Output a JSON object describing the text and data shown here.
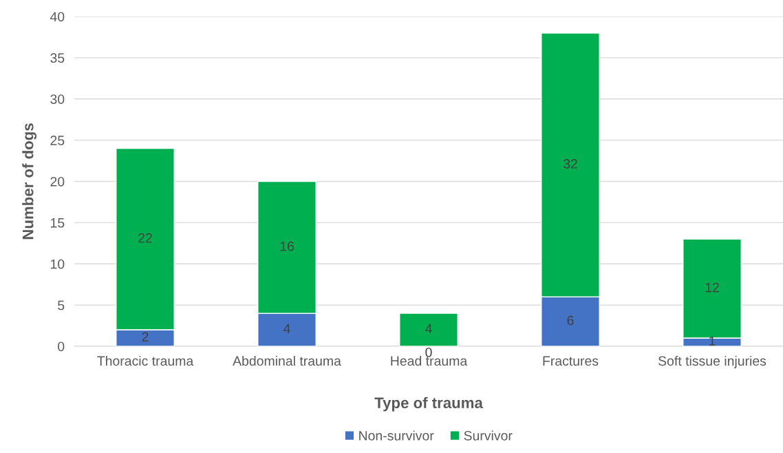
{
  "chart_data": {
    "type": "bar",
    "stacked": true,
    "xlabel": "Type of trauma",
    "ylabel": "Number of dogs",
    "categories": [
      "Thoracic trauma",
      "Abdominal trauma",
      "Head trauma",
      "Fractures",
      "Soft tissue injuries"
    ],
    "series": [
      {
        "name": "Non-survivor",
        "color": "#4472c4",
        "values": [
          2,
          4,
          0,
          6,
          1
        ]
      },
      {
        "name": "Survivor",
        "color": "#00b050",
        "values": [
          22,
          16,
          4,
          32,
          12
        ]
      }
    ],
    "ylim": [
      0,
      40
    ],
    "yticks": [
      0,
      5,
      10,
      15,
      20,
      25,
      30,
      35,
      40
    ],
    "grid": "y",
    "legend": "bottom",
    "data_labels": true
  }
}
